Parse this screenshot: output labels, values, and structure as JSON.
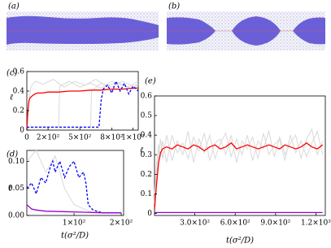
{
  "snapshots": [
    {
      "label": "(a)"
    },
    {
      "label": "(b)"
    }
  ],
  "chart_data": [
    {
      "type": "line",
      "label": "(c)",
      "ylabel": "ℓ",
      "xlim": [
        0,
        1050
      ],
      "ylim": [
        0,
        0.6
      ],
      "xticks": [
        0,
        {
          "value": 200,
          "label": "2×10²"
        },
        {
          "value": 500,
          "label": "5×10²"
        },
        {
          "value": 800,
          "label": "8×10²"
        },
        {
          "value": 1000,
          "label": "1×10³"
        }
      ],
      "yticks": [
        0,
        0.2,
        0.4,
        0.6
      ],
      "series": [
        {
          "color": "#d9d9d9",
          "x": [
            0,
            20,
            40,
            80,
            150,
            250,
            350,
            450,
            550,
            650,
            750,
            850,
            950,
            1050
          ],
          "values": [
            0,
            0.3,
            0.45,
            0.5,
            0.47,
            0.52,
            0.44,
            0.5,
            0.46,
            0.52,
            0.45,
            0.49,
            0.44,
            0.5
          ]
        },
        {
          "color": "#d9d9d9",
          "x": [
            0,
            100,
            200,
            300,
            310,
            400,
            500,
            600,
            700,
            800,
            900,
            1000,
            1050
          ],
          "values": [
            0.03,
            0.03,
            0.03,
            0.03,
            0.45,
            0.5,
            0.44,
            0.48,
            0.43,
            0.5,
            0.46,
            0.42,
            0.47
          ]
        },
        {
          "color": "#d9d9d9",
          "x": [
            0,
            300,
            500,
            600,
            610,
            700,
            800,
            900,
            1000,
            1050
          ],
          "values": [
            0.03,
            0.03,
            0.03,
            0.03,
            0.4,
            0.48,
            0.44,
            0.5,
            0.45,
            0.47
          ]
        },
        {
          "color": "#ff0000",
          "x": [
            0,
            10,
            20,
            30,
            50,
            75,
            100,
            150,
            200,
            300,
            400,
            500,
            600,
            700,
            800,
            900,
            1000,
            1050
          ],
          "values": [
            0,
            0.2,
            0.3,
            0.33,
            0.35,
            0.37,
            0.38,
            0.38,
            0.39,
            0.39,
            0.4,
            0.4,
            0.41,
            0.41,
            0.42,
            0.42,
            0.43,
            0.43
          ]
        },
        {
          "color": "#0000ff",
          "dashed": true,
          "x": [
            0,
            200,
            400,
            600,
            680,
            700,
            720,
            760,
            800,
            840,
            880,
            920,
            960,
            1000,
            1050
          ],
          "values": [
            0.03,
            0.03,
            0.03,
            0.03,
            0.03,
            0.3,
            0.42,
            0.46,
            0.38,
            0.5,
            0.4,
            0.48,
            0.37,
            0.45,
            0.4
          ]
        }
      ]
    },
    {
      "type": "line",
      "label": "(d)",
      "ylabel": "ℓ",
      "xlabel": "t(σ²/D)",
      "xlim": [
        0,
        205
      ],
      "ylim": [
        0,
        0.12
      ],
      "xticks": [
        {
          "value": 100,
          "label": "1×10²"
        },
        {
          "value": 200,
          "label": "2×10²"
        }
      ],
      "yticks": [
        {
          "value": 0,
          "label": "0.00"
        },
        {
          "value": 0.05,
          "label": "0.05"
        },
        {
          "value": 0.1,
          "label": "0.10"
        }
      ],
      "series": [
        {
          "color": "#d9d9d9",
          "x": [
            0,
            20,
            40,
            60,
            80,
            100,
            140,
            180,
            200
          ],
          "values": [
            0.1,
            0.12,
            0.08,
            0.11,
            0.05,
            0.02,
            0.005,
            0.005,
            0.005
          ]
        },
        {
          "color": "#0000ff",
          "dashed": true,
          "x": [
            0,
            10,
            20,
            30,
            40,
            50,
            55,
            60,
            70,
            80,
            90,
            100,
            110,
            120,
            125,
            130,
            140,
            160,
            180,
            200
          ],
          "values": [
            0.05,
            0.06,
            0.04,
            0.07,
            0.06,
            0.09,
            0.1,
            0.08,
            0.1,
            0.07,
            0.09,
            0.1,
            0.07,
            0.08,
            0.06,
            0.02,
            0.01,
            0.005,
            0.005,
            0.005
          ]
        },
        {
          "color": "#9900cc",
          "x": [
            0,
            10,
            20,
            40,
            80,
            120,
            160,
            200
          ],
          "values": [
            0.02,
            0.012,
            0.01,
            0.008,
            0.007,
            0.006,
            0.005,
            0.005
          ]
        }
      ]
    },
    {
      "type": "line",
      "label": "(e)",
      "ylabel": "ℓ",
      "xlabel": "t(σ²/D)",
      "xlim": [
        0,
        1270
      ],
      "ylim": [
        -0.01,
        0.6
      ],
      "xticks": [
        {
          "value": 300,
          "label": "3.0×10²"
        },
        {
          "value": 600,
          "label": "6.0×10²"
        },
        {
          "value": 900,
          "label": "9.0×10²"
        },
        {
          "value": 1200,
          "label": "1.2×10³"
        }
      ],
      "yticks": [
        0,
        0.1,
        0.2,
        0.3,
        0.4,
        0.5,
        0.6
      ],
      "series": [
        {
          "color": "#d9d9d9",
          "x": [
            0,
            15,
            30,
            45,
            60,
            90,
            130,
            170,
            210,
            250,
            290,
            330,
            370,
            410,
            450,
            490,
            530,
            570,
            610,
            650,
            690,
            730,
            770,
            810,
            850,
            890,
            930,
            970,
            1010,
            1050,
            1090,
            1130,
            1170,
            1210,
            1250
          ],
          "values": [
            0.05,
            0.2,
            0.3,
            0.38,
            0.28,
            0.4,
            0.27,
            0.37,
            0.3,
            0.42,
            0.26,
            0.38,
            0.31,
            0.4,
            0.28,
            0.36,
            0.41,
            0.29,
            0.38,
            0.3,
            0.4,
            0.27,
            0.37,
            0.33,
            0.42,
            0.29,
            0.39,
            0.3,
            0.36,
            0.4,
            0.28,
            0.38,
            0.43,
            0.3,
            0.37
          ]
        },
        {
          "color": "#d9d9d9",
          "x": [
            0,
            15,
            30,
            45,
            60,
            90,
            130,
            170,
            210,
            250,
            290,
            330,
            370,
            410,
            450,
            490,
            530,
            570,
            610,
            650,
            690,
            730,
            770,
            810,
            850,
            890,
            930,
            970,
            1010,
            1050,
            1090,
            1130,
            1170,
            1210,
            1250
          ],
          "values": [
            0.1,
            0.25,
            0.35,
            0.29,
            0.37,
            0.26,
            0.4,
            0.31,
            0.36,
            0.28,
            0.39,
            0.32,
            0.41,
            0.27,
            0.36,
            0.38,
            0.3,
            0.4,
            0.26,
            0.37,
            0.33,
            0.39,
            0.28,
            0.41,
            0.3,
            0.35,
            0.38,
            0.27,
            0.4,
            0.31,
            0.37,
            0.29,
            0.36,
            0.42,
            0.3
          ]
        },
        {
          "color": "#9900cc",
          "x": [
            0,
            1250
          ],
          "values": [
            0.005,
            0.005
          ]
        },
        {
          "color": "#ff0000",
          "x": [
            0,
            15,
            30,
            45,
            60,
            90,
            130,
            170,
            210,
            250,
            290,
            330,
            370,
            410,
            450,
            490,
            530,
            570,
            610,
            650,
            690,
            730,
            770,
            810,
            850,
            890,
            930,
            970,
            1010,
            1050,
            1090,
            1130,
            1170,
            1210,
            1250
          ],
          "values": [
            0.02,
            0.15,
            0.26,
            0.31,
            0.33,
            0.34,
            0.33,
            0.35,
            0.34,
            0.33,
            0.35,
            0.34,
            0.32,
            0.34,
            0.35,
            0.33,
            0.34,
            0.36,
            0.33,
            0.34,
            0.35,
            0.34,
            0.33,
            0.34,
            0.35,
            0.34,
            0.33,
            0.35,
            0.34,
            0.33,
            0.34,
            0.36,
            0.34,
            0.33,
            0.35
          ]
        }
      ]
    }
  ]
}
